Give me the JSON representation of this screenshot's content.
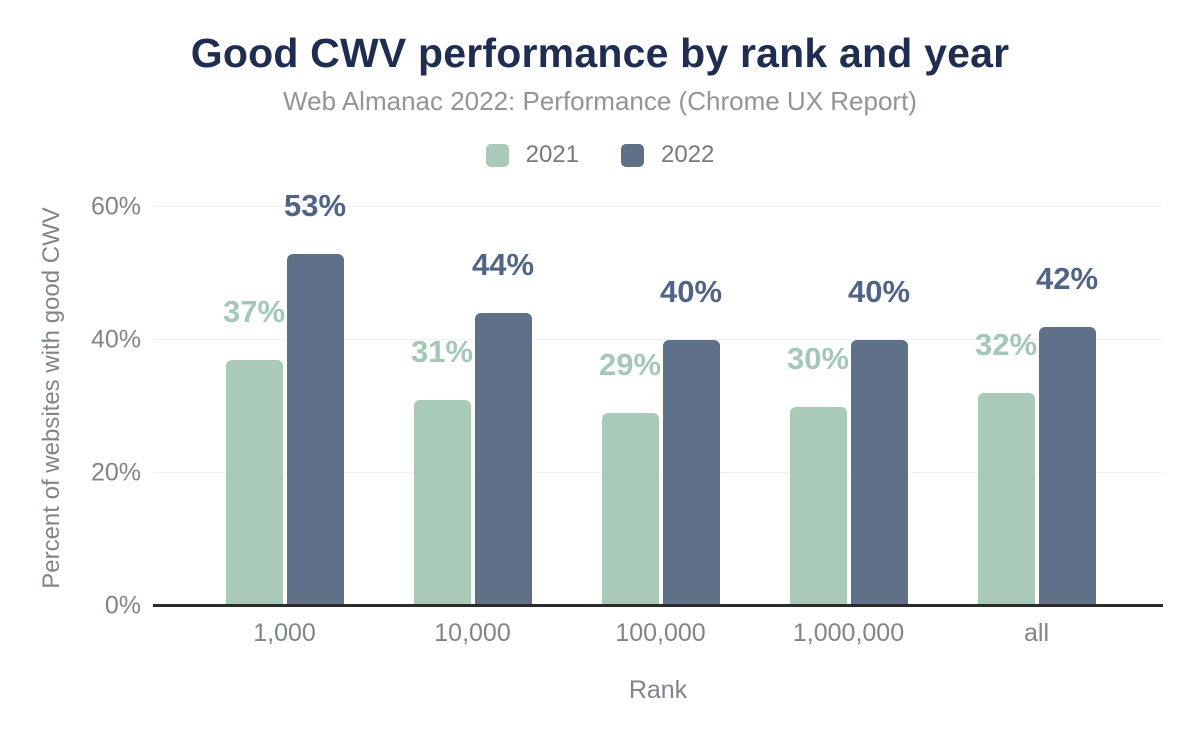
{
  "figure": {
    "title": "Good CWV performance by rank and year",
    "subtitle": "Web Almanac 2022: Performance (Chrome UX Report)"
  },
  "chart_data": {
    "type": "bar",
    "title": "Good CWV performance by rank and year",
    "subtitle": "Web Almanac 2022: Performance (Chrome UX Report)",
    "categories": [
      "1,000",
      "10,000",
      "100,000",
      "1,000,000",
      "all"
    ],
    "series": [
      {
        "name": "2021",
        "values": [
          37,
          31,
          29,
          30,
          32
        ],
        "labels": [
          "37%",
          "31%",
          "29%",
          "30%",
          "32%"
        ],
        "color": "#a9cab9",
        "label_color": "#a5c8b6"
      },
      {
        "name": "2022",
        "values": [
          53,
          44,
          40,
          40,
          42
        ],
        "labels": [
          "53%",
          "44%",
          "40%",
          "40%",
          "42%"
        ],
        "color": "#5f7089",
        "label_color": "#526486"
      }
    ],
    "xlabel": "Rank",
    "ylabel": "Percent of websites with good CWV",
    "ylim": [
      0,
      60
    ],
    "yticks": [
      {
        "value": 0,
        "label": "0%"
      },
      {
        "value": 20,
        "label": "20%"
      },
      {
        "value": 40,
        "label": "40%"
      },
      {
        "value": 60,
        "label": "60%"
      }
    ],
    "grid": true,
    "legend_position": "top"
  },
  "colors": {
    "title": "#1f2d50",
    "subtitle": "#8e959b",
    "axis_text": "#7f858b",
    "grid": "#efefef",
    "axis_line": "#2b2b2b",
    "background": "#ffffff"
  }
}
